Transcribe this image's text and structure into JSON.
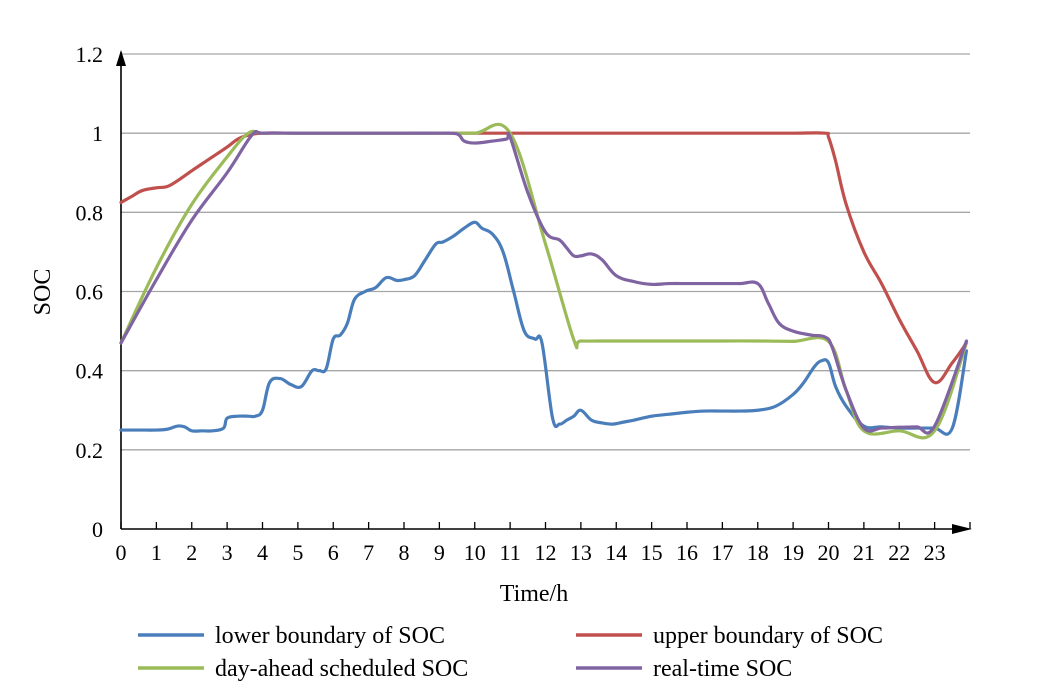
{
  "chart_data": {
    "type": "line",
    "xlabel": "Time/h",
    "ylabel": "SOC",
    "xlim": [
      0,
      24
    ],
    "ylim": [
      0,
      1.2
    ],
    "xticks": [
      "0",
      "1",
      "2",
      "3",
      "4",
      "5",
      "6",
      "7",
      "8",
      "9",
      "10",
      "11",
      "12",
      "13",
      "14",
      "15",
      "16",
      "17",
      "18",
      "19",
      "20",
      "21",
      "22",
      "23"
    ],
    "yticks": [
      "0",
      "0.2",
      "0.4",
      "0.6",
      "0.8",
      "1",
      "1.2"
    ],
    "grid": "horizontal",
    "legend_position": "bottom",
    "series": [
      {
        "name": "lower boundary of SOC",
        "color": "#4a7ebb",
        "x": [
          0,
          0.5,
          1,
          1.3,
          1.6,
          1.8,
          2,
          2.3,
          2.6,
          2.9,
          3,
          3.3,
          3.6,
          3.8,
          4,
          4.2,
          4.5,
          4.8,
          5.1,
          5.4,
          5.6,
          5.8,
          6,
          6.2,
          6.4,
          6.6,
          6.9,
          7.2,
          7.5,
          7.8,
          8,
          8.3,
          8.6,
          8.9,
          9.1,
          9.4,
          9.7,
          10,
          10.2,
          10.5,
          10.8,
          11.1,
          11.4,
          11.7,
          11.9,
          12.2,
          12.4,
          12.6,
          12.8,
          13,
          13.3,
          13.6,
          13.9,
          14.2,
          14.5,
          15,
          15.5,
          16,
          16.5,
          17,
          17.5,
          18,
          18.5,
          19,
          19.3,
          19.6,
          19.8,
          20,
          20.2,
          20.5,
          21,
          21.5,
          22,
          22.5,
          23,
          23.5,
          23.9
        ],
        "y": [
          0.25,
          0.25,
          0.25,
          0.252,
          0.26,
          0.258,
          0.248,
          0.248,
          0.248,
          0.255,
          0.28,
          0.285,
          0.285,
          0.285,
          0.3,
          0.37,
          0.38,
          0.365,
          0.36,
          0.4,
          0.4,
          0.405,
          0.48,
          0.49,
          0.52,
          0.58,
          0.6,
          0.61,
          0.635,
          0.628,
          0.63,
          0.64,
          0.68,
          0.72,
          0.725,
          0.74,
          0.76,
          0.775,
          0.76,
          0.745,
          0.7,
          0.6,
          0.5,
          0.48,
          0.47,
          0.28,
          0.265,
          0.275,
          0.285,
          0.3,
          0.275,
          0.268,
          0.265,
          0.27,
          0.275,
          0.285,
          0.29,
          0.295,
          0.298,
          0.298,
          0.298,
          0.3,
          0.31,
          0.34,
          0.37,
          0.41,
          0.425,
          0.42,
          0.36,
          0.31,
          0.26,
          0.258,
          0.255,
          0.255,
          0.255,
          0.255,
          0.45
        ]
      },
      {
        "name": "upper boundary of SOC",
        "color": "#c0504d",
        "x": [
          0,
          0.3,
          0.6,
          1,
          1.3,
          1.6,
          2,
          2.5,
          3,
          3.3,
          3.6,
          4,
          5,
          6,
          7,
          8,
          9,
          10,
          11,
          12,
          13,
          14,
          15,
          16,
          17,
          18,
          19,
          19.9,
          20,
          20.2,
          20.5,
          21,
          21.5,
          22,
          22.5,
          23,
          23.5,
          23.9
        ],
        "y": [
          0.825,
          0.84,
          0.855,
          0.862,
          0.865,
          0.88,
          0.905,
          0.935,
          0.965,
          0.985,
          0.995,
          1,
          1,
          1,
          1,
          1,
          1,
          1,
          1,
          1,
          1,
          1,
          1,
          1,
          1,
          1,
          1,
          1,
          0.99,
          0.93,
          0.82,
          0.7,
          0.62,
          0.53,
          0.45,
          0.37,
          0.42,
          0.47
        ]
      },
      {
        "name": "day-ahead scheduled SOC",
        "color": "#9bbb59",
        "x": [
          0,
          1,
          2,
          3,
          3.6,
          4,
          5,
          6,
          7,
          8,
          9,
          10,
          11,
          12,
          12.8,
          13,
          14,
          15,
          16,
          17,
          18,
          19,
          20,
          20.5,
          21,
          22,
          23,
          23.9
        ],
        "y": [
          0.47,
          0.66,
          0.82,
          0.94,
          1,
          1,
          1,
          1,
          1,
          1,
          1,
          1,
          1,
          0.72,
          0.478,
          0.475,
          0.475,
          0.475,
          0.475,
          0.475,
          0.475,
          0.474,
          0.474,
          0.35,
          0.248,
          0.248,
          0.248,
          0.47
        ]
      },
      {
        "name": "real-time SOC",
        "color": "#8064a2",
        "x": [
          0,
          1,
          2,
          3,
          3.7,
          4,
          5,
          6,
          7,
          8,
          9,
          9.5,
          9.7,
          10,
          10.5,
          10.9,
          11,
          11.5,
          12,
          12.4,
          12.6,
          12.8,
          13,
          13.3,
          13.6,
          14,
          14.5,
          15,
          15.5,
          16,
          16.5,
          17,
          17.5,
          18,
          18.3,
          18.6,
          19,
          19.5,
          19.9,
          20.1,
          20.5,
          21,
          21.5,
          22,
          22.5,
          23,
          23.9
        ],
        "y": [
          0.47,
          0.63,
          0.78,
          0.9,
          0.995,
          1,
          1,
          1,
          1,
          1,
          1,
          0.998,
          0.98,
          0.975,
          0.98,
          0.985,
          0.99,
          0.85,
          0.75,
          0.73,
          0.71,
          0.69,
          0.69,
          0.695,
          0.68,
          0.64,
          0.625,
          0.618,
          0.62,
          0.62,
          0.62,
          0.62,
          0.62,
          0.62,
          0.57,
          0.52,
          0.5,
          0.49,
          0.485,
          0.46,
          0.35,
          0.255,
          0.255,
          0.257,
          0.258,
          0.26,
          0.475
        ]
      }
    ]
  }
}
